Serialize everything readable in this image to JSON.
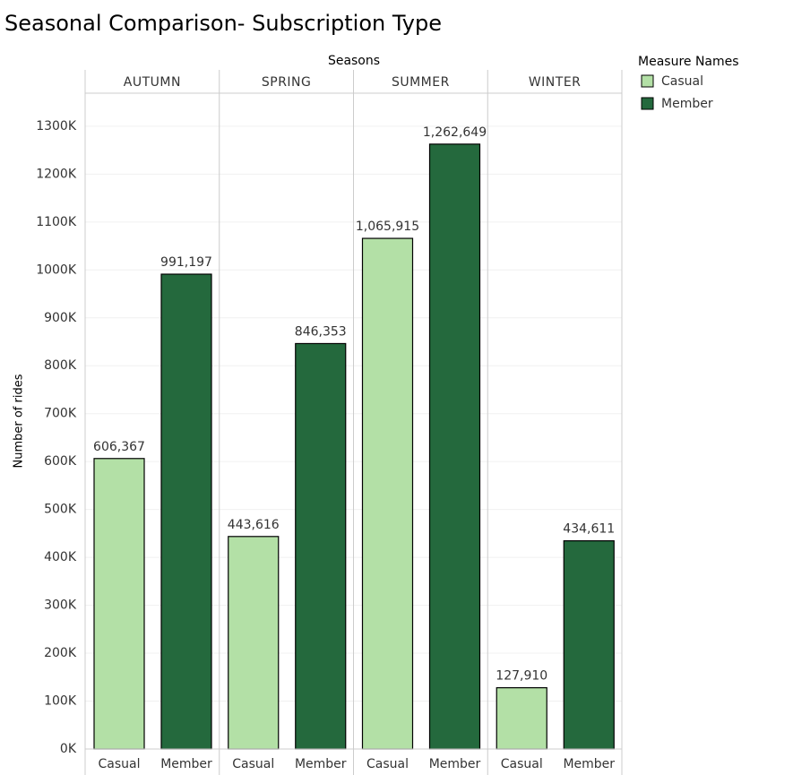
{
  "chart_data": {
    "type": "bar",
    "title": "Seasonal Comparison- Subscription Type",
    "x_label": "Seasons",
    "y_label": "Number of rides",
    "legend_title": "Measure Names",
    "categories": [
      "AUTUMN",
      "SPRING",
      "SUMMER",
      "WINTER"
    ],
    "series": [
      {
        "name": "Casual",
        "color": "#b3e0a6",
        "values": [
          606367,
          443616,
          1065915,
          127910
        ],
        "value_labels": [
          "606,367",
          "443,616",
          "1,065,915",
          "127,910"
        ]
      },
      {
        "name": "Member",
        "color": "#24693d",
        "values": [
          991197,
          846353,
          1262649,
          434611
        ],
        "value_labels": [
          "991,197",
          "846,353",
          "1,262,649",
          "434,611"
        ]
      }
    ],
    "ylim": [
      0,
      1369000
    ],
    "yticks": [
      {
        "value": 0,
        "label": "0K"
      },
      {
        "value": 100000,
        "label": "100K"
      },
      {
        "value": 200000,
        "label": "200K"
      },
      {
        "value": 300000,
        "label": "300K"
      },
      {
        "value": 400000,
        "label": "400K"
      },
      {
        "value": 500000,
        "label": "500K"
      },
      {
        "value": 600000,
        "label": "600K"
      },
      {
        "value": 700000,
        "label": "700K"
      },
      {
        "value": 800000,
        "label": "800K"
      },
      {
        "value": 900000,
        "label": "900K"
      },
      {
        "value": 1000000,
        "label": "1000K"
      },
      {
        "value": 1100000,
        "label": "1100K"
      },
      {
        "value": 1200000,
        "label": "1200K"
      },
      {
        "value": 1300000,
        "label": "1300K"
      }
    ],
    "grid": true
  }
}
